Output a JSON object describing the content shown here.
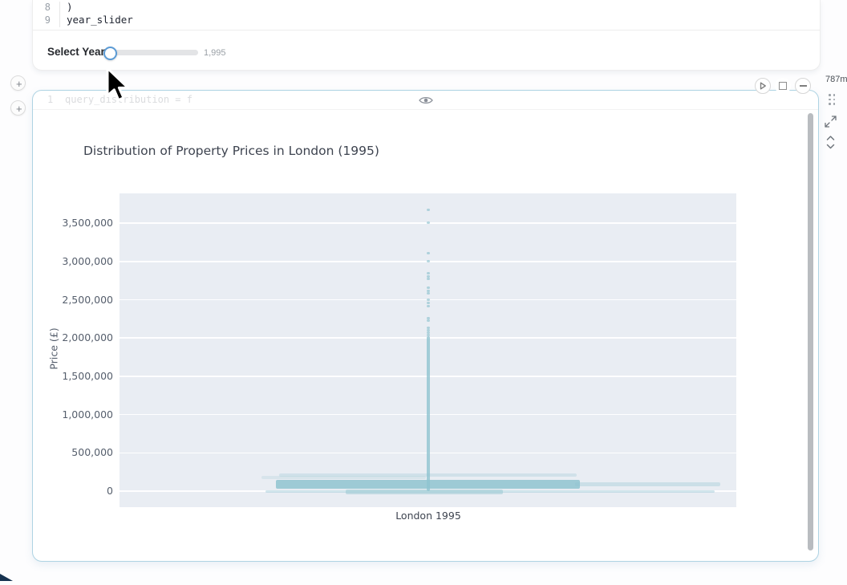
{
  "colors": {
    "cell_border": "#aed3e3",
    "accent_blue": "#5b9bd5",
    "mark_teal": "#8fc3cf",
    "plot_bg": "#e9edf3"
  },
  "top_cell": {
    "code_lines": [
      {
        "num": "8",
        "code": ")"
      },
      {
        "num": "9",
        "code": "year_slider"
      }
    ],
    "slider": {
      "label": "Select Year:",
      "value_display": "1,995"
    }
  },
  "margin": {
    "add_button_label": "+"
  },
  "chart_cell": {
    "code_line": {
      "num": "1",
      "code": "query_distribution = f"
    },
    "runtime": "787m"
  },
  "icons": {
    "play": "play-icon",
    "stop": "stop-icon",
    "collapse": "collapse-icon",
    "eye": "eye-icon",
    "drag": "drag-handle-icon",
    "expand": "expand-icon",
    "updown": "up-down-chevron-icon",
    "cursor": "mouse-cursor"
  },
  "chart_data": {
    "type": "scatter",
    "subtype": "strip-plot",
    "title": "Distribution of Property Prices in London (1995)",
    "xlabel": "London 1995",
    "ylabel": "Price (£)",
    "categories": [
      "London 1995"
    ],
    "ylim": [
      -210000,
      3890000
    ],
    "yticks": [
      0,
      500000,
      1000000,
      1500000,
      2000000,
      2500000,
      3000000,
      3500000
    ],
    "ytick_labels": [
      "0",
      "500,000",
      "1,000,000",
      "1,500,000",
      "2,000,000",
      "2,500,000",
      "3,000,000",
      "3,500,000"
    ],
    "grid": true,
    "legend": false,
    "mark_color": "#8fc3cf",
    "plot_bg": "#e9edf3",
    "outlier_prices": [
      3670000,
      3510000,
      3110000,
      3000000,
      2850000,
      2800000,
      2770000,
      2660000,
      2620000,
      2580000,
      2500000,
      2460000,
      2420000,
      2260000,
      2230000,
      2130000,
      2100000,
      2070000,
      2040000
    ],
    "stem": {
      "x_frac": 0.5,
      "price_min": 0,
      "price_max": 2020000
    },
    "density_bands": [
      {
        "x0_frac": 0.259,
        "x1_frac": 0.741,
        "price_top": 230000,
        "price_bottom": 189000,
        "alpha": 0.28
      },
      {
        "x0_frac": 0.23,
        "x1_frac": 0.497,
        "price_top": 199000,
        "price_bottom": 157000,
        "alpha": 0.2
      },
      {
        "x0_frac": 0.254,
        "x1_frac": 0.746,
        "price_top": 147000,
        "price_bottom": 31000,
        "alpha": 0.85
      },
      {
        "x0_frac": 0.739,
        "x1_frac": 0.974,
        "price_top": 115000,
        "price_bottom": 63000,
        "alpha": 0.33
      },
      {
        "x0_frac": 0.237,
        "x1_frac": 0.965,
        "price_top": 10000,
        "price_bottom": -21000,
        "alpha": 0.4
      },
      {
        "x0_frac": 0.367,
        "x1_frac": 0.622,
        "price_top": 21000,
        "price_bottom": -42000,
        "alpha": 0.45
      }
    ]
  }
}
